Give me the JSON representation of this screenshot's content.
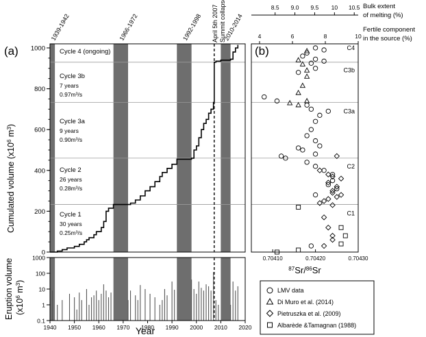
{
  "colors": {
    "band": "#6e6e6e",
    "line": "#000000",
    "cycle_line": "#9a9a9a"
  },
  "panel_a": {
    "label": "(a)",
    "ylabel": "Cumulated volume (x10",
    "ylabel_sup": "6",
    "ylabel_unit": " m",
    "ylabel_sup2": "3",
    "ylabel_end": ")",
    "yticks": [
      "0",
      "200",
      "400",
      "600",
      "800",
      "1000"
    ],
    "band_labels": [
      "1939-1942",
      "1966-1972",
      "1992-1998",
      "2010-2014"
    ],
    "event_labels": [
      "April 5th 2007",
      "Summit collapse"
    ],
    "cycles": [
      {
        "title": "Cycle 4 (ongoing)",
        "years": "",
        "rate": ""
      },
      {
        "title": "Cycle 3b",
        "years": "7 years",
        "rate": "0.97m³/s"
      },
      {
        "title": "Cycle 3a",
        "years": "9 years",
        "rate": "0.90m³/s"
      },
      {
        "title": "Cycle 2",
        "years": "26 years",
        "rate": "0.28m³/s"
      },
      {
        "title": "Cycle 1",
        "years": "30 years",
        "rate": "0.25m³/s"
      }
    ]
  },
  "panel_low": {
    "ylabel1": "Eruption volume",
    "ylabel2": "(x10",
    "ylabel2_sup": "6",
    "ylabel2_end": " m",
    "ylabel2_sup2": "3",
    "ylabel2_close": ")",
    "yticks": [
      "1000",
      "100",
      "10",
      "1",
      "0.1"
    ],
    "xticks": [
      "1940",
      "1950",
      "1960",
      "1970",
      "1980",
      "1990",
      "2000",
      "2010",
      "2020"
    ],
    "xlabel": "Year"
  },
  "panel_b": {
    "label": "(b)",
    "top_axis1_label": [
      "Bulk extent",
      "of melting (%)"
    ],
    "top_axis1_ticks": [
      "8.5",
      "9.0",
      "9.5",
      "10",
      "10.5"
    ],
    "top_axis2_label": [
      "Fertile component",
      "in the source (%)"
    ],
    "top_axis2_ticks": [
      "4",
      "6",
      "8",
      "10"
    ],
    "xticks": [
      "0.70410",
      "0.70420",
      "0.70430"
    ],
    "xlabel_sup1": "87",
    "xlabel_mid": "Sr/",
    "xlabel_sup2": "86",
    "xlabel_end": "Sr",
    "cycle_tags": [
      "C4",
      "C3b",
      "C3a",
      "C2",
      "C1"
    ]
  },
  "legend": [
    {
      "marker": "circle",
      "label": "LMV data"
    },
    {
      "marker": "triangle",
      "label": "Di Muro et al. (2014)"
    },
    {
      "marker": "diamond",
      "label": "Pietruszka et al. (2009)"
    },
    {
      "marker": "square",
      "label": "Albarède &Tamagnan (1988)"
    }
  ],
  "chart_data": [
    {
      "type": "line",
      "title": "",
      "xlabel": "",
      "ylabel": "Cumulated volume (x10^6 m^3)",
      "xlim": [
        1940,
        2020
      ],
      "ylim": [
        0,
        1020
      ],
      "shaded_periods": [
        [
          1940,
          1942
        ],
        [
          1966,
          1972
        ],
        [
          1992,
          1998
        ],
        [
          2010,
          2014
        ]
      ],
      "event_line_x": 2007.3,
      "cycle_boundaries_y": [
        233,
        460,
        733,
        930
      ],
      "series": [
        {
          "x": [
            1940,
            1943,
            1945,
            1947,
            1950,
            1952,
            1954,
            1955,
            1956,
            1958,
            1959,
            1961,
            1962,
            1963,
            1964,
            1966,
            1972,
            1973,
            1975,
            1977,
            1979,
            1981,
            1983,
            1985,
            1986,
            1988,
            1990,
            1992,
            1998,
            1999,
            2000,
            2001,
            2002,
            2003,
            2004,
            2005,
            2006,
            2007,
            2007.3,
            2008,
            2010,
            2014,
            2015,
            2016,
            2017
          ],
          "y": [
            0,
            5,
            12,
            20,
            28,
            38,
            50,
            60,
            70,
            85,
            100,
            120,
            150,
            200,
            215,
            233,
            233,
            240,
            255,
            275,
            300,
            320,
            345,
            370,
            390,
            410,
            430,
            455,
            460,
            500,
            520,
            560,
            600,
            630,
            650,
            680,
            700,
            733,
            930,
            935,
            940,
            945,
            980,
            1000,
            1015
          ]
        }
      ]
    },
    {
      "type": "bar",
      "xlabel": "Year",
      "ylabel": "Eruption volume (x10^6 m^3)",
      "yscale": "log",
      "ylim": [
        0.1,
        1000
      ],
      "xlim": [
        1940,
        2020
      ],
      "x": [
        1941,
        1943,
        1945,
        1948,
        1950,
        1951,
        1952,
        1953,
        1955,
        1956,
        1957,
        1958,
        1959,
        1960,
        1961,
        1962,
        1963,
        1964,
        1965,
        1972,
        1973,
        1975,
        1976,
        1977,
        1979,
        1981,
        1983,
        1985,
        1986,
        1987,
        1988,
        1990,
        1991,
        1998,
        1999,
        2000,
        2001,
        2002,
        2003,
        2004,
        2005,
        2006,
        2007,
        2008,
        2009,
        2014,
        2015,
        2016,
        2017
      ],
      "values": [
        8,
        1,
        2,
        5,
        3,
        0.5,
        6,
        2,
        10,
        1,
        3,
        4,
        8,
        2,
        5,
        20,
        8,
        3,
        6,
        2,
        8,
        4,
        2,
        18,
        10,
        5,
        3,
        1,
        2,
        10,
        4,
        30,
        9,
        40,
        10,
        5,
        30,
        12,
        8,
        20,
        15,
        8,
        120,
        2,
        1,
        1,
        30,
        8,
        15
      ]
    },
    {
      "type": "scatter",
      "xlabel": "87Sr/86Sr",
      "ylabel": "Cumulated volume (x10^6 m^3)",
      "xlim": [
        0.70405,
        0.7043
      ],
      "ylim": [
        0,
        1020
      ],
      "series": [
        {
          "name": "LMV data",
          "x": [
            0.7042,
            0.70422,
            0.70418,
            0.70417,
            0.7042,
            0.70422,
            0.70419,
            0.7042,
            0.70416,
            0.70408,
            0.70411,
            0.70418,
            0.70419,
            0.70423,
            0.70421,
            0.7042,
            0.70419,
            0.70418,
            0.7042,
            0.70421,
            0.70416,
            0.70417,
            0.7042,
            0.70412,
            0.70413,
            0.70418,
            0.7042,
            0.70422,
            0.70424,
            0.70424,
            0.70423,
            0.70425,
            0.7042,
            0.70419
          ],
          "y": [
            1000,
            990,
            975,
            960,
            945,
            935,
            925,
            900,
            880,
            760,
            740,
            720,
            700,
            690,
            670,
            640,
            600,
            570,
            545,
            520,
            510,
            500,
            480,
            470,
            460,
            440,
            420,
            400,
            380,
            350,
            330,
            310,
            280,
            30
          ]
        },
        {
          "name": "Di Muro et al. (2014)",
          "x": [
            0.70418,
            0.70416,
            0.70417,
            0.70418,
            0.70418,
            0.70417,
            0.70416,
            0.70418,
            0.70414,
            0.70416
          ],
          "y": [
            985,
            940,
            920,
            890,
            860,
            815,
            780,
            740,
            730,
            720
          ]
        },
        {
          "name": "Pietruszka et al. (2009)",
          "x": [
            0.70425,
            0.70421,
            0.70423,
            0.70424,
            0.70426,
            0.70423,
            0.70425,
            0.70424,
            0.70424,
            0.70426,
            0.70425,
            0.70423,
            0.70422,
            0.70421,
            0.70424,
            0.70422,
            0.70423,
            0.70424,
            0.70424,
            0.70422
          ],
          "y": [
            470,
            400,
            380,
            370,
            360,
            340,
            320,
            300,
            290,
            280,
            270,
            260,
            250,
            240,
            230,
            170,
            120,
            80,
            60,
            30
          ]
        },
        {
          "name": "Albarède &Tamagnan (1988)",
          "x": [
            0.70416,
            0.70426,
            0.70427,
            0.70426,
            0.70411,
            0.70416
          ],
          "y": [
            220,
            120,
            80,
            40,
            0,
            10
          ]
        }
      ]
    }
  ]
}
